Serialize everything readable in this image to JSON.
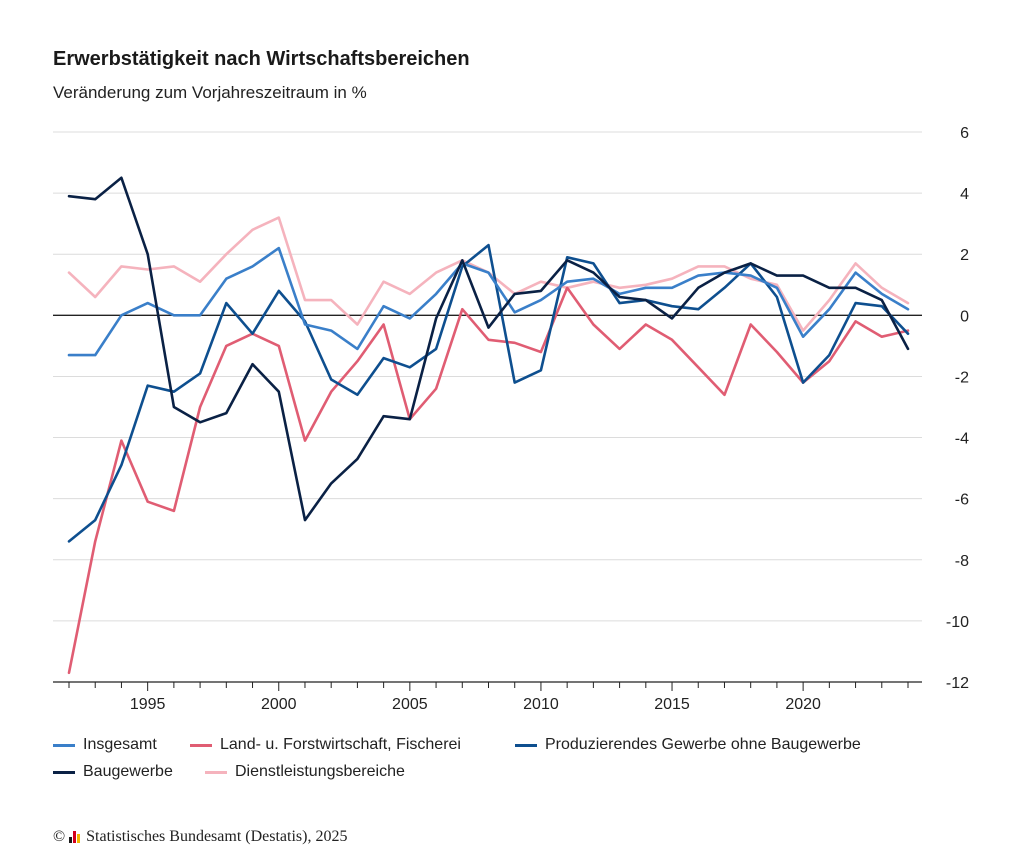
{
  "chart_data": {
    "type": "line",
    "title": "Erwerbstätigkeit nach Wirtschaftsbereichen",
    "subtitle": "Veränderung zum Vorjahreszeitraum in %",
    "x": [
      1992,
      1993,
      1994,
      1995,
      1996,
      1997,
      1998,
      1999,
      2000,
      2001,
      2002,
      2003,
      2004,
      2005,
      2006,
      2007,
      2008,
      2009,
      2010,
      2011,
      2012,
      2013,
      2014,
      2015,
      2016,
      2017,
      2018,
      2019,
      2020,
      2021,
      2022,
      2023,
      2024
    ],
    "x_tick_labels": [
      "1995",
      "2000",
      "2005",
      "2010",
      "2015",
      "2020"
    ],
    "x_tick_values": [
      1995,
      2000,
      2005,
      2010,
      2015,
      2020
    ],
    "y_tick_labels": [
      "6",
      "4",
      "2",
      "0",
      "-2",
      "-4",
      "-6",
      "-8",
      "-10",
      "-12"
    ],
    "y_tick_values": [
      6,
      4,
      2,
      0,
      -2,
      -4,
      -6,
      -8,
      -10,
      -12
    ],
    "ylim": [
      -12,
      6
    ],
    "grid": true,
    "y_axis_position": "right",
    "legend_position": "bottom",
    "series": [
      {
        "name": "Insgesamt",
        "color": "#3a7fc9",
        "values": [
          -1.3,
          -1.3,
          0.0,
          0.4,
          0.0,
          0.0,
          1.2,
          1.6,
          2.2,
          -0.3,
          -0.5,
          -1.1,
          0.3,
          -0.1,
          0.7,
          1.7,
          1.4,
          0.1,
          0.5,
          1.1,
          1.2,
          0.7,
          0.9,
          0.9,
          1.3,
          1.4,
          1.3,
          0.9,
          -0.7,
          0.2,
          1.4,
          0.7,
          0.2
        ]
      },
      {
        "name": "Land- u. Forstwirtschaft, Fischerei",
        "color": "#e05d73",
        "values": [
          -11.7,
          -7.4,
          -4.1,
          -6.1,
          -6.4,
          -3.0,
          -1.0,
          -0.6,
          -1.0,
          -4.1,
          -2.5,
          -1.5,
          -0.3,
          -3.4,
          -2.4,
          0.2,
          -0.8,
          -0.9,
          -1.2,
          0.9,
          -0.3,
          -1.1,
          -0.3,
          -0.8,
          -1.7,
          -2.6,
          -0.3,
          -1.2,
          -2.2,
          -1.5,
          -0.2,
          -0.7,
          -0.5
        ]
      },
      {
        "name": "Produzierendes Gewerbe ohne Baugewerbe",
        "color": "#0e4f8f",
        "values": [
          -7.4,
          -6.7,
          -4.9,
          -2.3,
          -2.5,
          -1.9,
          0.4,
          -0.6,
          0.8,
          -0.2,
          -2.1,
          -2.6,
          -1.4,
          -1.7,
          -1.1,
          1.6,
          2.3,
          -2.2,
          -1.8,
          1.9,
          1.7,
          0.4,
          0.5,
          0.3,
          0.2,
          0.9,
          1.7,
          0.6,
          -2.2,
          -1.3,
          0.4,
          0.3,
          -0.6
        ]
      },
      {
        "name": "Baugewerbe",
        "color": "#0a2145",
        "values": [
          3.9,
          3.8,
          4.5,
          2.0,
          -3.0,
          -3.5,
          -3.2,
          -1.6,
          -2.5,
          -6.7,
          -5.5,
          -4.7,
          -3.3,
          -3.4,
          -0.1,
          1.8,
          -0.4,
          0.7,
          0.8,
          1.8,
          1.4,
          0.6,
          0.5,
          -0.1,
          0.9,
          1.4,
          1.7,
          1.3,
          1.3,
          0.9,
          0.9,
          0.5,
          -1.1
        ]
      },
      {
        "name": "Dienstleistungsbereiche",
        "color": "#f5b3bd",
        "values": [
          1.4,
          0.6,
          1.6,
          1.5,
          1.6,
          1.1,
          2.0,
          2.8,
          3.2,
          0.5,
          0.5,
          -0.3,
          1.1,
          0.7,
          1.4,
          1.8,
          1.4,
          0.7,
          1.1,
          0.9,
          1.1,
          0.9,
          1.0,
          1.2,
          1.6,
          1.6,
          1.2,
          1.0,
          -0.5,
          0.5,
          1.7,
          0.9,
          0.4
        ]
      }
    ]
  },
  "footer": {
    "copyright_symbol": "©",
    "source": "Statistisches Bundesamt (Destatis), 2025",
    "logo_colors": [
      "#1a1a1a",
      "#d4001c",
      "#f2b700"
    ]
  }
}
